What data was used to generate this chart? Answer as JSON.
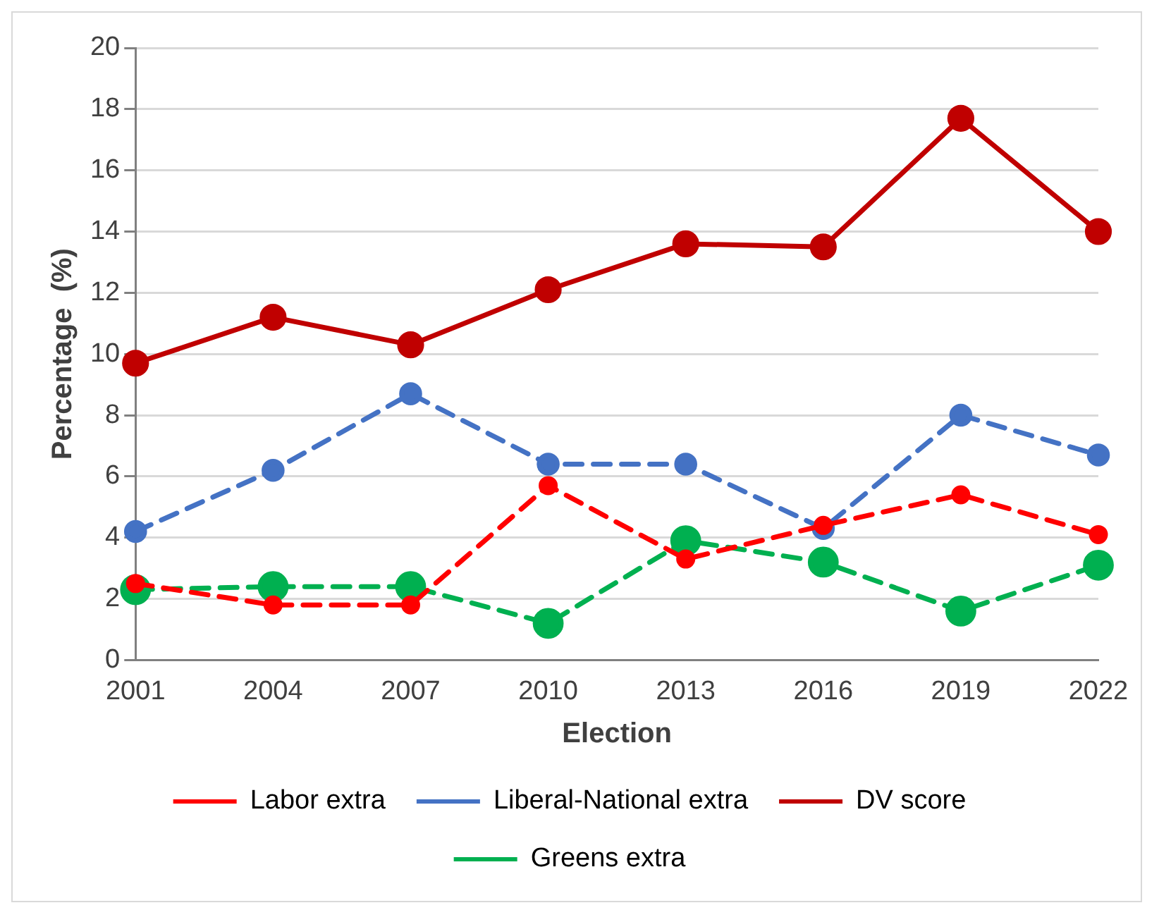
{
  "chart_data": {
    "type": "line",
    "xlabel": "Election",
    "ylabel": "Percentage  (%)",
    "categories": [
      "2001",
      "2004",
      "2007",
      "2010",
      "2013",
      "2016",
      "2019",
      "2022"
    ],
    "series": [
      {
        "name": "Labor extra",
        "color": "#ff0000",
        "line_style": "dashed",
        "values": [
          2.5,
          1.8,
          1.8,
          5.7,
          3.3,
          4.4,
          5.4,
          4.1
        ]
      },
      {
        "name": "Liberal-National extra",
        "color": "#4472c4",
        "line_style": "dashed",
        "values": [
          4.2,
          6.2,
          8.7,
          6.4,
          6.4,
          4.3,
          8.0,
          6.7
        ]
      },
      {
        "name": "DV score",
        "color": "#c00000",
        "line_style": "solid",
        "values": [
          9.7,
          11.2,
          10.3,
          12.1,
          13.6,
          13.5,
          17.7,
          14.0
        ]
      },
      {
        "name": "Greens extra",
        "color": "#00b050",
        "line_style": "dashed",
        "values": [
          2.3,
          2.4,
          2.4,
          1.2,
          3.9,
          3.2,
          1.6,
          3.1
        ]
      }
    ],
    "ylim": [
      0,
      20
    ],
    "yticks": [
      0,
      2,
      4,
      6,
      8,
      10,
      12,
      14,
      16,
      18,
      20
    ],
    "grid": "y",
    "legend": "bottom",
    "marker": "circle"
  }
}
